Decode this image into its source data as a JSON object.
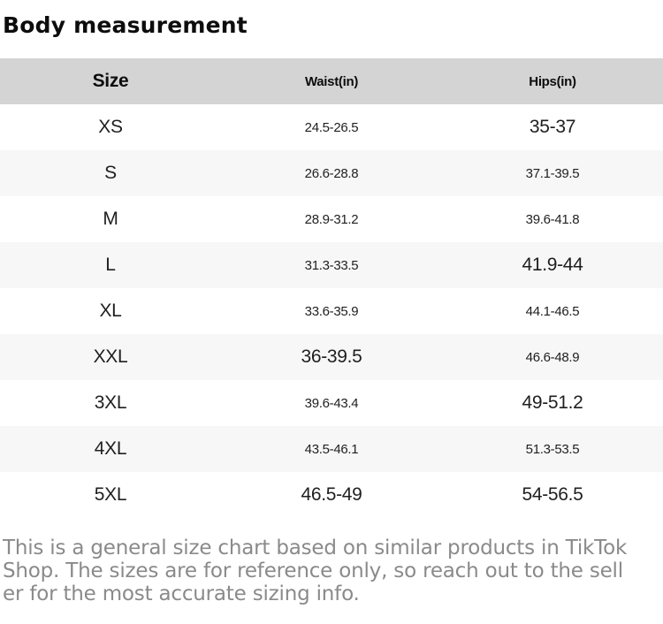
{
  "page": {
    "title": "Body measurement"
  },
  "table": {
    "columns": [
      "Size",
      "Waist(in)",
      "Hips(in)"
    ],
    "rows": [
      {
        "size": "XS",
        "waist": "24.5-26.5",
        "hips": "35-37"
      },
      {
        "size": "S",
        "waist": "26.6-28.8",
        "hips": "37.1-39.5"
      },
      {
        "size": "M",
        "waist": "28.9-31.2",
        "hips": "39.6-41.8"
      },
      {
        "size": "L",
        "waist": "31.3-33.5",
        "hips": "41.9-44"
      },
      {
        "size": "XL",
        "waist": "33.6-35.9",
        "hips": "44.1-46.5"
      },
      {
        "size": "XXL",
        "waist": "36-39.5",
        "hips": "46.6-48.9"
      },
      {
        "size": "3XL",
        "waist": "39.6-43.4",
        "hips": "49-51.2"
      },
      {
        "size": "4XL",
        "waist": "43.5-46.1",
        "hips": "51.3-53.5"
      },
      {
        "size": "5XL",
        "waist": "46.5-49",
        "hips": "54-56.5"
      }
    ]
  },
  "disclaimer": {
    "text": "This is a general size chart based on similar products in TikTok Shop. The sizes are for reference only, so reach out to the seller for the most accurate sizing info.",
    "lines": [
      "This is a general size chart based on similar products in TikTok",
      "Shop. The sizes are for reference only, so reach out to the sell",
      "er for the most accurate sizing info."
    ]
  },
  "colors": {
    "header_bg": "#d4d4d4",
    "alt_row_bg": "#f7f7f7",
    "text": "#1f1f1f",
    "title_text": "#0d0d0d",
    "muted_text": "#8a8a8a"
  }
}
